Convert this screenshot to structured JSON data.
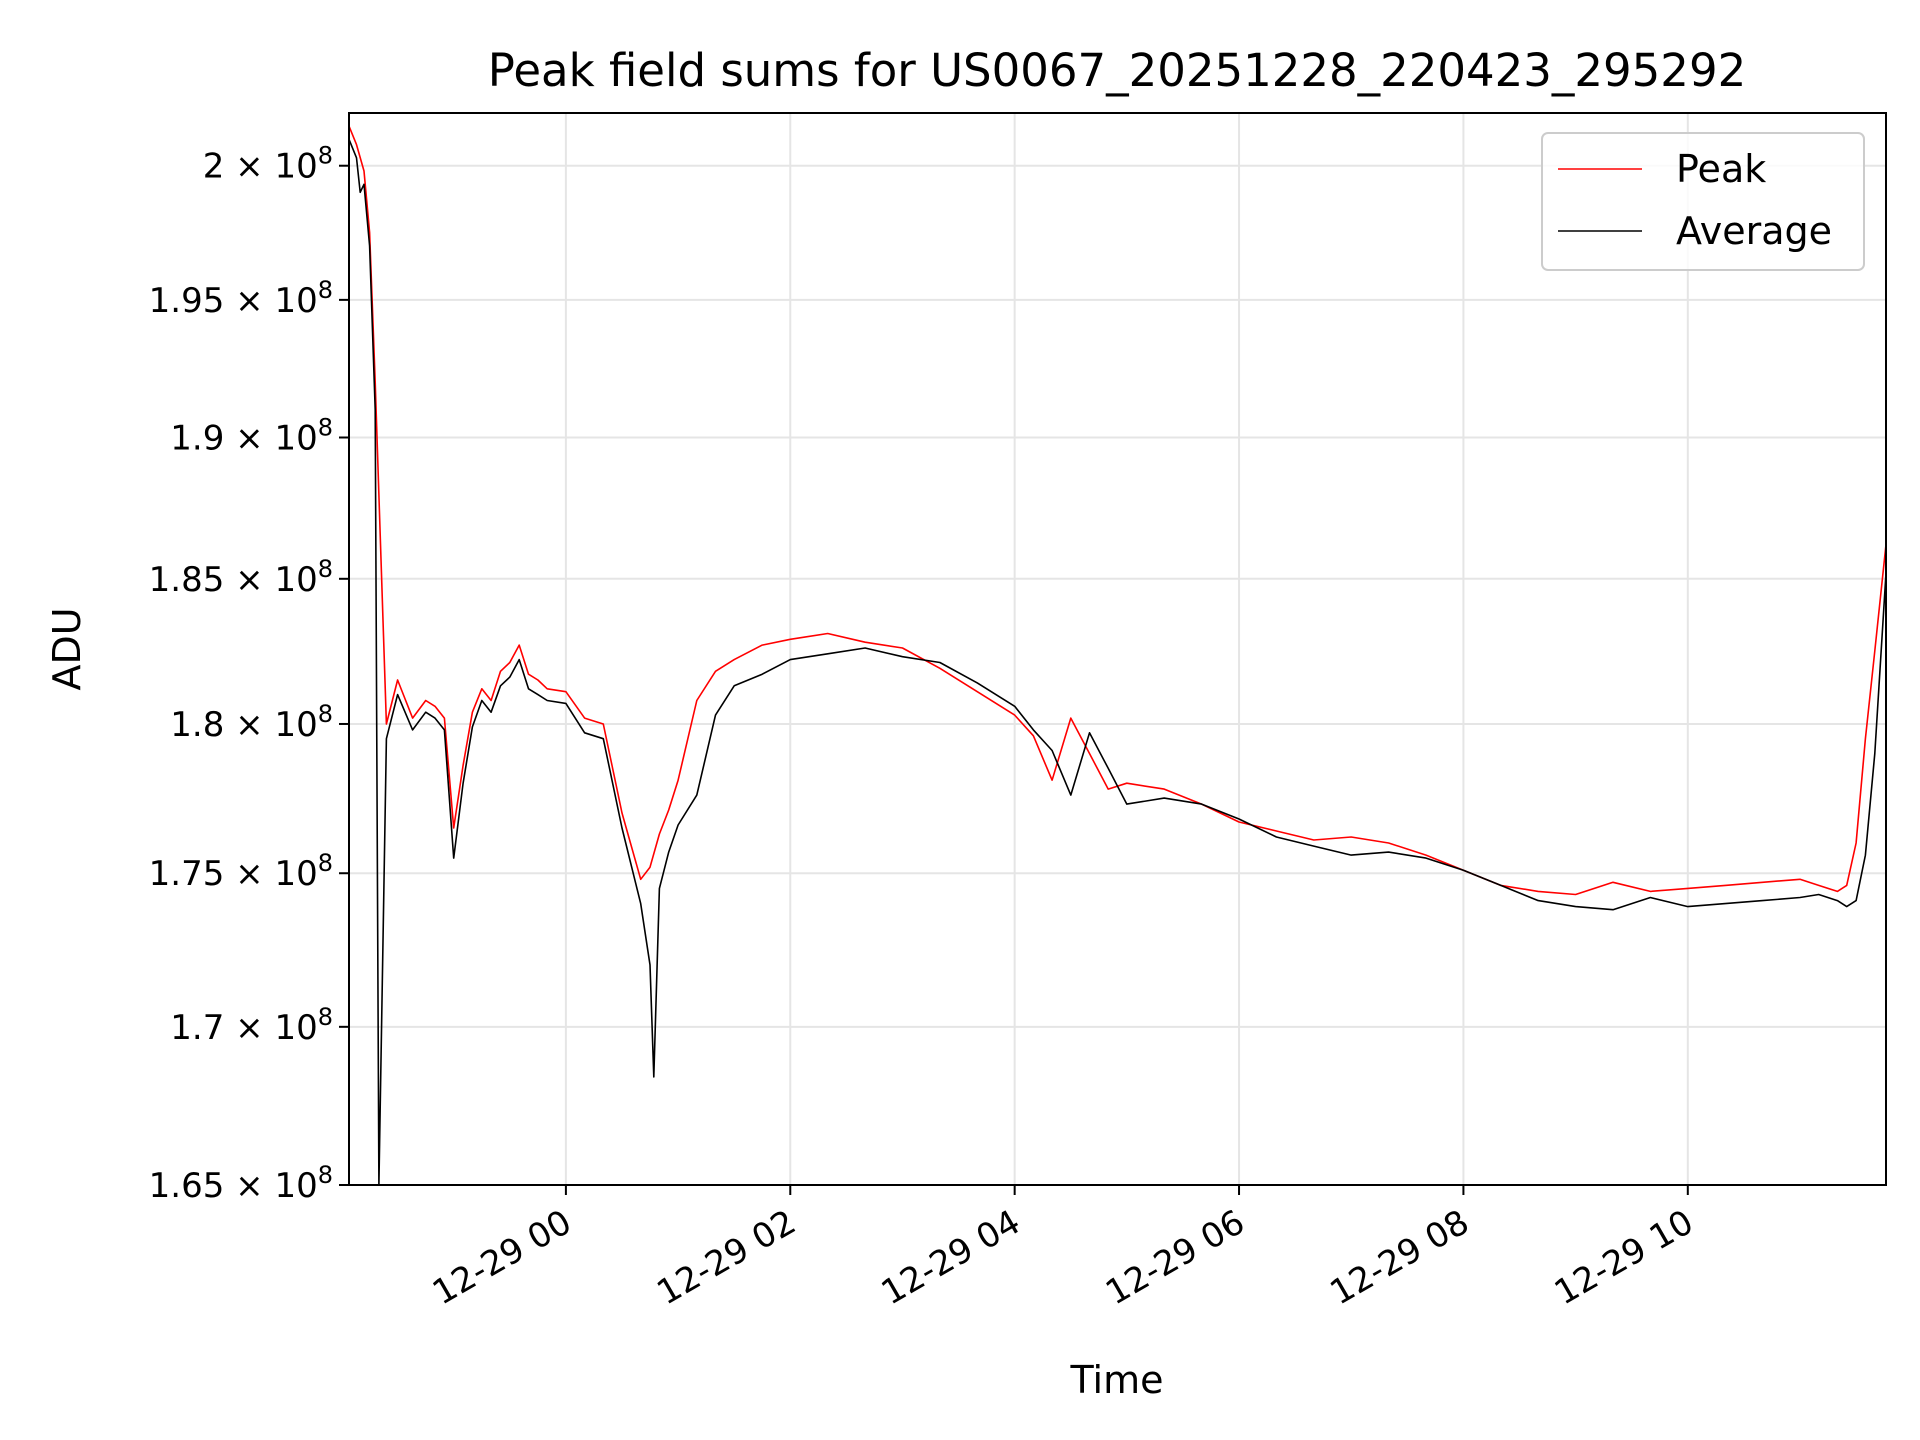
{
  "chart_data": {
    "type": "line",
    "title": "Peak field sums for US0067_20251228_220423_295292",
    "xlabel": "Time",
    "ylabel": "ADU",
    "x_axis_kind": "datetime",
    "xlim": [
      "2025-12-28 22:04",
      "2025-12-29 11:46"
    ],
    "ylim": [
      165000000,
      202000000
    ],
    "y_scale": "log",
    "grid": true,
    "legend_position": "upper right",
    "x_ticks": [
      {
        "value": "2025-12-29 00:00",
        "label": "12-29 00"
      },
      {
        "value": "2025-12-29 02:00",
        "label": "12-29 02"
      },
      {
        "value": "2025-12-29 04:00",
        "label": "12-29 04"
      },
      {
        "value": "2025-12-29 06:00",
        "label": "12-29 06"
      },
      {
        "value": "2025-12-29 08:00",
        "label": "12-29 08"
      },
      {
        "value": "2025-12-29 10:00",
        "label": "12-29 10"
      }
    ],
    "y_ticks": [
      {
        "value": 165000000,
        "mantissa": "1.65",
        "exp": "8"
      },
      {
        "value": 170000000,
        "mantissa": "1.7",
        "exp": "8"
      },
      {
        "value": 175000000,
        "mantissa": "1.75",
        "exp": "8"
      },
      {
        "value": 180000000,
        "mantissa": "1.8",
        "exp": "8"
      },
      {
        "value": 185000000,
        "mantissa": "1.85",
        "exp": "8"
      },
      {
        "value": 190000000,
        "mantissa": "1.9",
        "exp": "8"
      },
      {
        "value": 195000000,
        "mantissa": "1.95",
        "exp": "8"
      },
      {
        "value": 200000000,
        "mantissa": "2",
        "exp": "8"
      }
    ],
    "series": [
      {
        "name": "Peak",
        "color": "#ff0000",
        "x": [
          "2025-12-28 22:04",
          "2025-12-28 22:08",
          "2025-12-28 22:12",
          "2025-12-28 22:15",
          "2025-12-28 22:18",
          "2025-12-28 22:24",
          "2025-12-28 22:30",
          "2025-12-28 22:38",
          "2025-12-28 22:45",
          "2025-12-28 22:50",
          "2025-12-28 22:55",
          "2025-12-28 23:00",
          "2025-12-28 23:05",
          "2025-12-28 23:10",
          "2025-12-28 23:15",
          "2025-12-28 23:20",
          "2025-12-28 23:25",
          "2025-12-28 23:30",
          "2025-12-28 23:35",
          "2025-12-28 23:40",
          "2025-12-28 23:45",
          "2025-12-28 23:50",
          "2025-12-29 00:00",
          "2025-12-29 00:10",
          "2025-12-29 00:20",
          "2025-12-29 00:30",
          "2025-12-29 00:40",
          "2025-12-29 00:45",
          "2025-12-29 00:50",
          "2025-12-29 00:55",
          "2025-12-29 01:00",
          "2025-12-29 01:10",
          "2025-12-29 01:20",
          "2025-12-29 01:30",
          "2025-12-29 01:45",
          "2025-12-29 02:00",
          "2025-12-29 02:20",
          "2025-12-29 02:40",
          "2025-12-29 03:00",
          "2025-12-29 03:20",
          "2025-12-29 03:40",
          "2025-12-29 04:00",
          "2025-12-29 04:10",
          "2025-12-29 04:20",
          "2025-12-29 04:30",
          "2025-12-29 04:40",
          "2025-12-29 04:50",
          "2025-12-29 05:00",
          "2025-12-29 05:20",
          "2025-12-29 05:40",
          "2025-12-29 06:00",
          "2025-12-29 06:20",
          "2025-12-29 06:40",
          "2025-12-29 07:00",
          "2025-12-29 07:20",
          "2025-12-29 07:40",
          "2025-12-29 08:00",
          "2025-12-29 08:20",
          "2025-12-29 08:40",
          "2025-12-29 09:00",
          "2025-12-29 09:20",
          "2025-12-29 09:40",
          "2025-12-29 10:00",
          "2025-12-29 10:20",
          "2025-12-29 10:40",
          "2025-12-29 11:00",
          "2025-12-29 11:10",
          "2025-12-29 11:20",
          "2025-12-29 11:25",
          "2025-12-29 11:30",
          "2025-12-29 11:35",
          "2025-12-29 11:40",
          "2025-12-29 11:46"
        ],
        "y": [
          201500000,
          200800000,
          199800000,
          197500000,
          192000000,
          180000000,
          181500000,
          180200000,
          180800000,
          180600000,
          180200000,
          176500000,
          178600000,
          180400000,
          181200000,
          180800000,
          181800000,
          182100000,
          182700000,
          181700000,
          181500000,
          181200000,
          181100000,
          180200000,
          180000000,
          177000000,
          174800000,
          175200000,
          176300000,
          177100000,
          178100000,
          180800000,
          181800000,
          182200000,
          182700000,
          182900000,
          183100000,
          182800000,
          182600000,
          181900000,
          181100000,
          180300000,
          179600000,
          178100000,
          180200000,
          179000000,
          177800000,
          178000000,
          177800000,
          177300000,
          176700000,
          176400000,
          176100000,
          176200000,
          176000000,
          175600000,
          175100000,
          174600000,
          174400000,
          174300000,
          174700000,
          174400000,
          174500000,
          174600000,
          174700000,
          174800000,
          174600000,
          174400000,
          174600000,
          176000000,
          179500000,
          182500000,
          186200000
        ]
      },
      {
        "name": "Average",
        "color": "#000000",
        "x": [
          "2025-12-28 22:04",
          "2025-12-28 22:08",
          "2025-12-28 22:10",
          "2025-12-28 22:12",
          "2025-12-28 22:15",
          "2025-12-28 22:18",
          "2025-12-28 22:20",
          "2025-12-28 22:24",
          "2025-12-28 22:30",
          "2025-12-28 22:38",
          "2025-12-28 22:45",
          "2025-12-28 22:50",
          "2025-12-28 22:55",
          "2025-12-28 23:00",
          "2025-12-28 23:05",
          "2025-12-28 23:10",
          "2025-12-28 23:15",
          "2025-12-28 23:20",
          "2025-12-28 23:25",
          "2025-12-28 23:30",
          "2025-12-28 23:35",
          "2025-12-28 23:40",
          "2025-12-28 23:45",
          "2025-12-28 23:50",
          "2025-12-29 00:00",
          "2025-12-29 00:10",
          "2025-12-29 00:20",
          "2025-12-29 00:30",
          "2025-12-29 00:40",
          "2025-12-29 00:45",
          "2025-12-29 00:47",
          "2025-12-29 00:50",
          "2025-12-29 00:55",
          "2025-12-29 01:00",
          "2025-12-29 01:10",
          "2025-12-29 01:20",
          "2025-12-29 01:30",
          "2025-12-29 01:45",
          "2025-12-29 02:00",
          "2025-12-29 02:20",
          "2025-12-29 02:40",
          "2025-12-29 03:00",
          "2025-12-29 03:20",
          "2025-12-29 03:40",
          "2025-12-29 04:00",
          "2025-12-29 04:10",
          "2025-12-29 04:20",
          "2025-12-29 04:30",
          "2025-12-29 04:40",
          "2025-12-29 04:50",
          "2025-12-29 05:00",
          "2025-12-29 05:20",
          "2025-12-29 05:40",
          "2025-12-29 06:00",
          "2025-12-29 06:20",
          "2025-12-29 06:40",
          "2025-12-29 07:00",
          "2025-12-29 07:20",
          "2025-12-29 07:40",
          "2025-12-29 08:00",
          "2025-12-29 08:20",
          "2025-12-29 08:40",
          "2025-12-29 09:00",
          "2025-12-29 09:20",
          "2025-12-29 09:40",
          "2025-12-29 10:00",
          "2025-12-29 10:20",
          "2025-12-29 10:40",
          "2025-12-29 11:00",
          "2025-12-29 11:10",
          "2025-12-29 11:20",
          "2025-12-29 11:25",
          "2025-12-29 11:30",
          "2025-12-29 11:35",
          "2025-12-29 11:40",
          "2025-12-29 11:46"
        ],
        "y": [
          201000000,
          200300000,
          199000000,
          199300000,
          197000000,
          191000000,
          165000000,
          179500000,
          181000000,
          179800000,
          180400000,
          180200000,
          179800000,
          175500000,
          178000000,
          179900000,
          180800000,
          180400000,
          181300000,
          181600000,
          182200000,
          181200000,
          181000000,
          180800000,
          180700000,
          179700000,
          179500000,
          176500000,
          174000000,
          172000000,
          168400000,
          174500000,
          175700000,
          176600000,
          177600000,
          180300000,
          181300000,
          181700000,
          182200000,
          182400000,
          182600000,
          182300000,
          182100000,
          181400000,
          180600000,
          179800000,
          179100000,
          177600000,
          179700000,
          178500000,
          177300000,
          177500000,
          177300000,
          176800000,
          176200000,
          175900000,
          175600000,
          175700000,
          175500000,
          175100000,
          174600000,
          174100000,
          173900000,
          173800000,
          174200000,
          173900000,
          174000000,
          174100000,
          174200000,
          174300000,
          174100000,
          173900000,
          174100000,
          175600000,
          179000000,
          185200000
        ]
      }
    ]
  }
}
